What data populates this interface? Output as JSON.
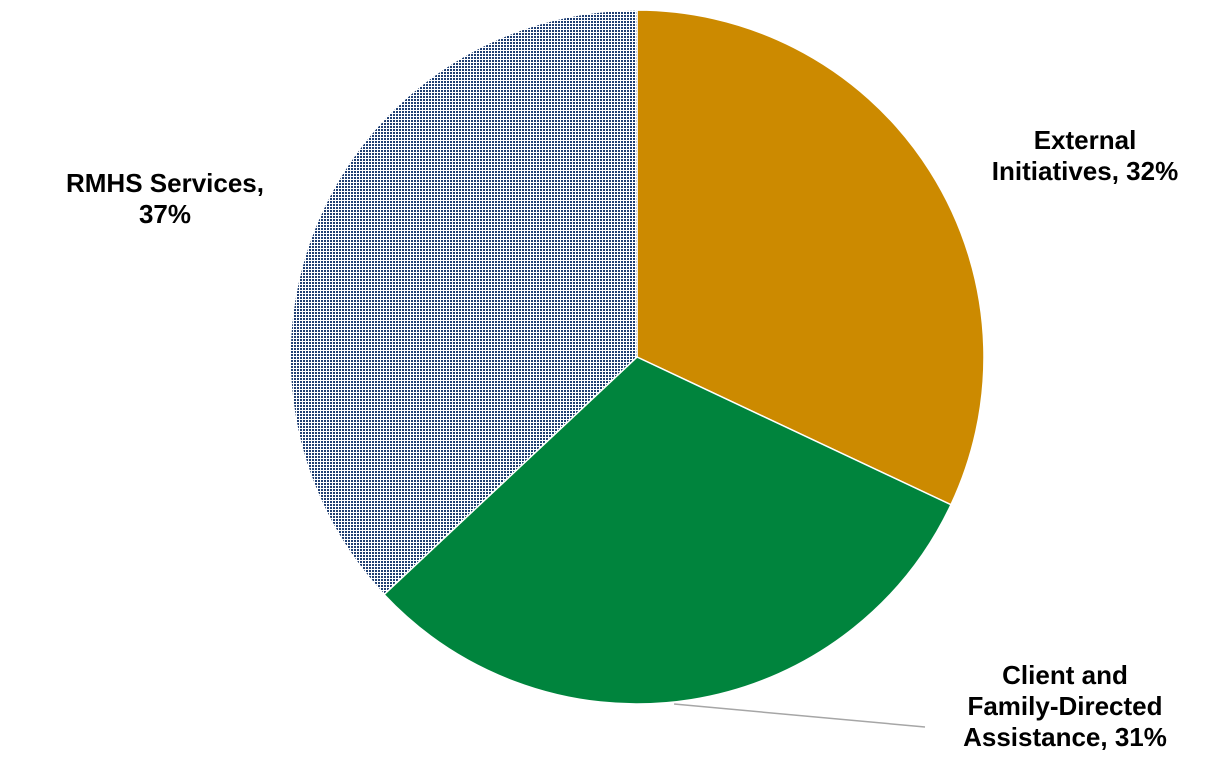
{
  "chart_data": {
    "type": "pie",
    "title": "",
    "start_angle_deg": 0,
    "direction": "clockwise",
    "slices": [
      {
        "name": "External Initiatives",
        "value": 32,
        "label_lines": [
          "External",
          "Initiatives, 32%"
        ],
        "color": "#CC8A00",
        "fill": "solid"
      },
      {
        "name": "Client and Family-Directed Assistance",
        "value": 31,
        "label_lines": [
          "Client and",
          "Family-Directed",
          "Assistance, 31%"
        ],
        "color": "#00843D",
        "fill": "solid"
      },
      {
        "name": "RMHS Services",
        "value": 37,
        "label_lines": [
          "RMHS Services,",
          "37%"
        ],
        "color": "#1F3F73",
        "fill": "dotted"
      }
    ],
    "legend": "none",
    "leader_line_color": "#A6A6A6"
  }
}
